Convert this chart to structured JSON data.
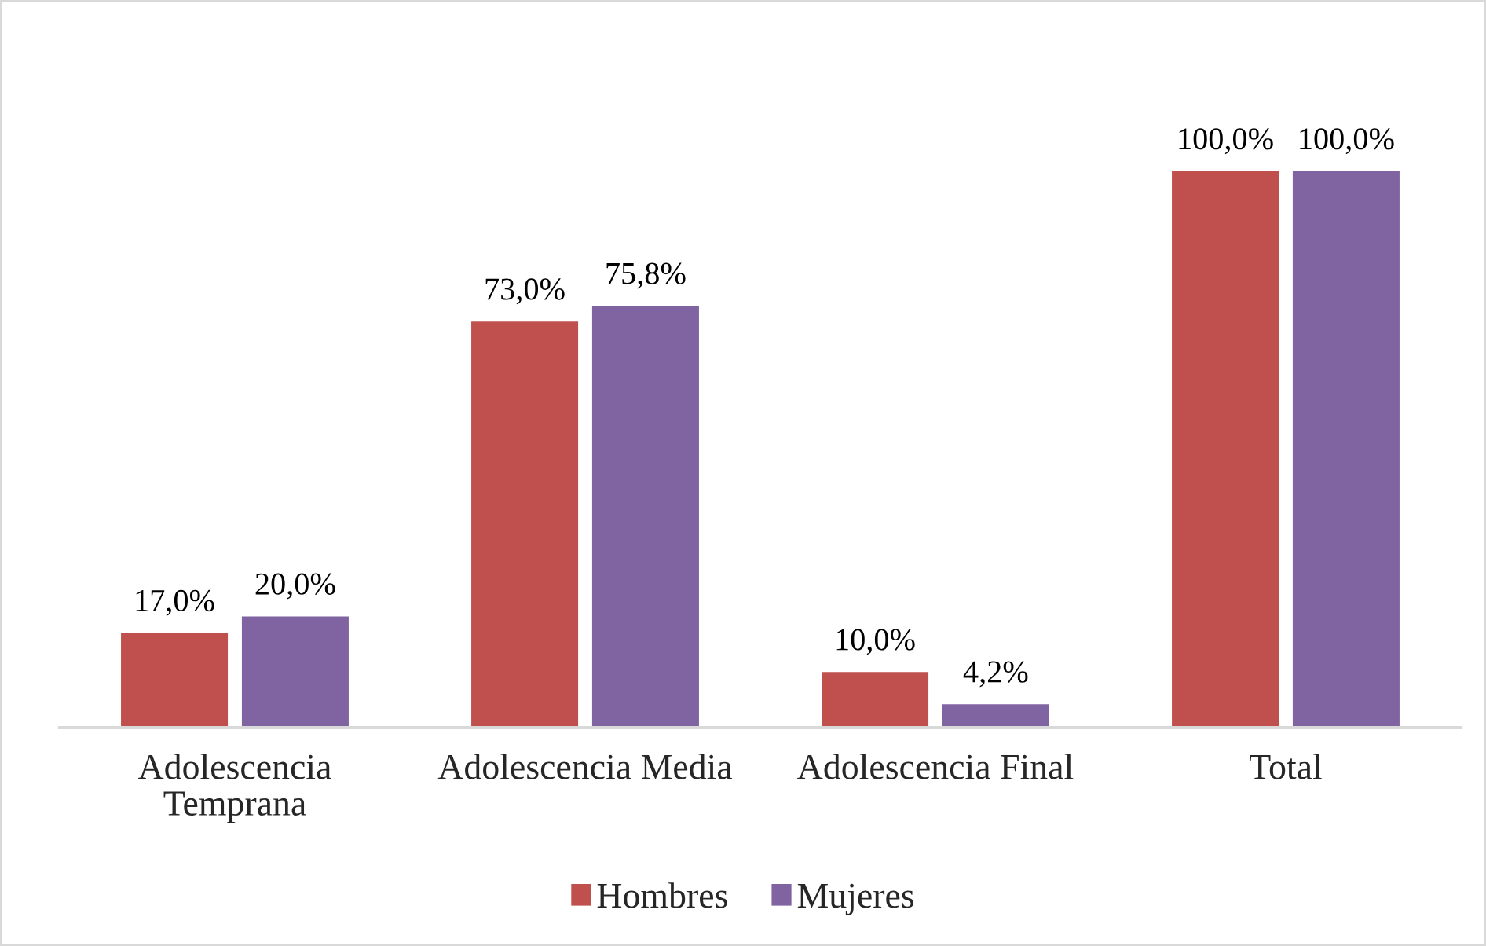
{
  "chart_data": {
    "type": "bar",
    "categories": [
      "Adolescencia Temprana",
      "Adolescencia Media",
      "Adolescencia Final",
      "Total"
    ],
    "series": [
      {
        "name": "Hombres",
        "color": "#c0504d",
        "values": [
          17.0,
          73.0,
          10.0,
          100.0
        ],
        "value_labels": [
          "17,0%",
          "73,0%",
          "10,0%",
          "100,0%"
        ]
      },
      {
        "name": "Mujeres",
        "color": "#8064a2",
        "values": [
          20.0,
          75.8,
          4.2,
          100.0
        ],
        "value_labels": [
          "20,0%",
          "75,8%",
          "4,2%",
          "100,0%"
        ]
      }
    ],
    "legend": "bottom"
  }
}
